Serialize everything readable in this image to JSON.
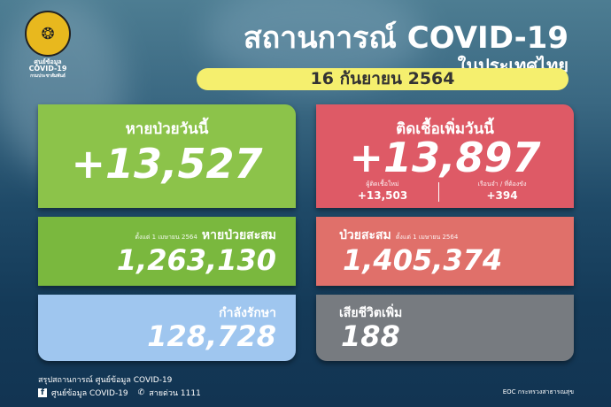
{
  "logo": {
    "text": [
      "ศูนย์ข้อมูล",
      "COVID-19",
      "กรมประชาสัมพันธ์"
    ]
  },
  "header": {
    "title": "สถานการณ์ COVID-19",
    "subtitle": "ในประเทศไทย",
    "date": "16 กันยายน 2564"
  },
  "recovered_today": {
    "label": "หายป่วยวันนี้",
    "value": "+13,527",
    "color": "#8cc34a"
  },
  "infected_today": {
    "label": "ติดเชื้อเพิ่มวันนี้",
    "value": "+13,897",
    "color": "#de5a66",
    "new_cases_label": "ผู้ติดเชื้อใหม่",
    "new_cases": "+13,503",
    "prison_label": "เรือนจำ / ที่ต้องขัง",
    "prison": "+394"
  },
  "recovered_total": {
    "since": "ตั้งแต่ 1 เมษายน 2564",
    "label": "หายป่วยสะสม",
    "value": "1,263,130",
    "color": "#7ab83e"
  },
  "infected_total": {
    "label": "ป่วยสะสม",
    "since": "ตั้งแต่ 1 เมษายน 2564",
    "value": "1,405,374",
    "color": "#e0706a"
  },
  "in_treatment": {
    "label": "กำลังรักษา",
    "value": "128,728",
    "color": "#9fc6ef"
  },
  "deaths": {
    "label": "เสียชีวิตเพิ่ม",
    "value": "188",
    "color": "#777b80"
  },
  "footer": {
    "summary": "สรุปสถานการณ์ ศูนย์ข้อมูล COVID-19",
    "facebook": "ศูนย์ข้อมูล COVID-19",
    "hotline": "สายด่วน 1111",
    "source": "EOC กระทรวงสาธารณสุข"
  }
}
